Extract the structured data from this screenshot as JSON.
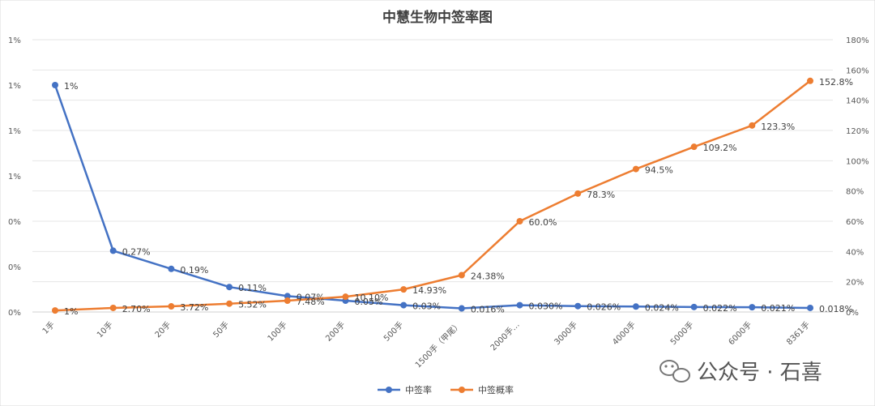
{
  "chart_data": {
    "type": "line",
    "title": "中慧生物中签率图",
    "categories": [
      "1手",
      "10手",
      "20手",
      "50手",
      "100手",
      "200手",
      "500手",
      "1500手（甲尾）",
      "2000手…",
      "3000手",
      "4000手",
      "5000手",
      "6000手",
      "8361手"
    ],
    "series": [
      {
        "name": "中签率",
        "axis": "left",
        "color": "#4472c4",
        "values": [
          1.0,
          0.27,
          0.19,
          0.11,
          0.07,
          0.05,
          0.03,
          0.016,
          0.03,
          0.026,
          0.024,
          0.022,
          0.021,
          0.018
        ],
        "labels": [
          "1%",
          "0.27%",
          "0.19%",
          "0.11%",
          "0.07%",
          "0.05%",
          "0.03%",
          "0.016%",
          "0.030%",
          "0.026%",
          "0.024%",
          "0.022%",
          "0.021%",
          "0.018%"
        ]
      },
      {
        "name": "中签概率",
        "axis": "right",
        "color": "#ed7d31",
        "values": [
          1.0,
          2.7,
          3.72,
          5.52,
          7.48,
          10.1,
          14.93,
          24.38,
          60.0,
          78.3,
          94.5,
          109.2,
          123.3,
          152.8
        ],
        "labels": [
          "1%",
          "2.70%",
          "3.72%",
          "5.52%",
          "7.48%",
          "10.10%",
          "14.93%",
          "24.38%",
          "60.0%",
          "78.3%",
          "94.5%",
          "109.2%",
          "123.3%",
          "152.8%"
        ]
      }
    ],
    "y_left": {
      "ylim": [
        0,
        1.2
      ],
      "tick_labels": [
        "0%",
        "0%",
        "0%",
        "1%",
        "1%",
        "1%",
        "1%"
      ]
    },
    "y_right": {
      "ylim": [
        0,
        180
      ],
      "tick_labels": [
        "0%",
        "20%",
        "40%",
        "60%",
        "80%",
        "100%",
        "120%",
        "140%",
        "160%",
        "180%"
      ]
    },
    "legend_placement": "bottom",
    "grid": true
  },
  "watermark": {
    "text": "公众号 · 石喜",
    "icon": "wechat-icon"
  }
}
